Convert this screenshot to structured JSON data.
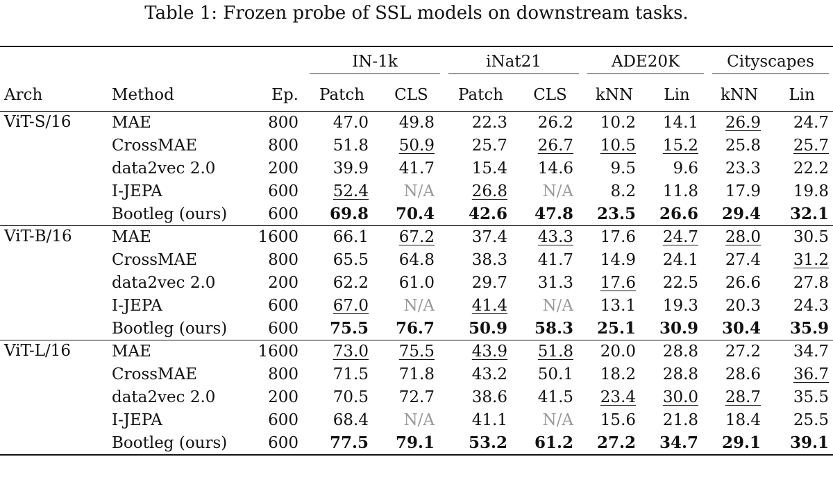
{
  "caption": "Table 1: Frozen probe of SSL models on downstream tasks.",
  "header": {
    "groups": [
      "IN-1k",
      "iNat21",
      "ADE20K",
      "Cityscapes"
    ],
    "columns": [
      "Arch",
      "Method",
      "Ep.",
      "Patch",
      "CLS",
      "Patch",
      "CLS",
      "kNN",
      "Lin",
      "kNN",
      "Lin"
    ]
  },
  "blocks": [
    {
      "arch": "ViT-S/16",
      "rows": [
        {
          "method": "MAE",
          "ep": "800",
          "values": [
            "47.0",
            "49.8",
            "22.3",
            "26.2",
            "10.2",
            "14.1",
            "26.9",
            "24.7"
          ],
          "underline": [
            6
          ],
          "bold": [],
          "na": []
        },
        {
          "method": "CrossMAE",
          "ep": "800",
          "values": [
            "51.8",
            "50.9",
            "25.7",
            "26.7",
            "10.5",
            "15.2",
            "25.8",
            "25.7"
          ],
          "underline": [
            1,
            3,
            4,
            5,
            7
          ],
          "bold": [],
          "na": []
        },
        {
          "method": "data2vec 2.0",
          "ep": "200",
          "values": [
            "39.9",
            "41.7",
            "15.4",
            "14.6",
            "9.5",
            "9.6",
            "23.3",
            "22.2"
          ],
          "underline": [],
          "bold": [],
          "na": []
        },
        {
          "method": "I-JEPA",
          "ep": "600",
          "values": [
            "52.4",
            "N/A",
            "26.8",
            "N/A",
            "8.2",
            "11.8",
            "17.9",
            "19.8"
          ],
          "underline": [
            0,
            2
          ],
          "bold": [],
          "na": [
            1,
            3
          ]
        },
        {
          "method": "Bootleg (ours)",
          "ep": "600",
          "values": [
            "69.8",
            "70.4",
            "42.6",
            "47.8",
            "23.5",
            "26.6",
            "29.4",
            "32.1"
          ],
          "underline": [],
          "bold": [
            0,
            1,
            2,
            3,
            4,
            5,
            6,
            7
          ],
          "na": []
        }
      ]
    },
    {
      "arch": "ViT-B/16",
      "rows": [
        {
          "method": "MAE",
          "ep": "1600",
          "values": [
            "66.1",
            "67.2",
            "37.4",
            "43.3",
            "17.6",
            "24.7",
            "28.0",
            "30.5"
          ],
          "underline": [
            1,
            3,
            5,
            6
          ],
          "bold": [],
          "na": []
        },
        {
          "method": "CrossMAE",
          "ep": "800",
          "values": [
            "65.5",
            "64.8",
            "38.3",
            "41.7",
            "14.9",
            "24.1",
            "27.4",
            "31.2"
          ],
          "underline": [
            7
          ],
          "bold": [],
          "na": []
        },
        {
          "method": "data2vec 2.0",
          "ep": "200",
          "values": [
            "62.2",
            "61.0",
            "29.7",
            "31.3",
            "17.6",
            "22.5",
            "26.6",
            "27.8"
          ],
          "underline": [
            4
          ],
          "bold": [],
          "na": []
        },
        {
          "method": "I-JEPA",
          "ep": "600",
          "values": [
            "67.0",
            "N/A",
            "41.4",
            "N/A",
            "13.1",
            "19.3",
            "20.3",
            "24.3"
          ],
          "underline": [
            0,
            2
          ],
          "bold": [],
          "na": [
            1,
            3
          ]
        },
        {
          "method": "Bootleg (ours)",
          "ep": "600",
          "values": [
            "75.5",
            "76.7",
            "50.9",
            "58.3",
            "25.1",
            "30.9",
            "30.4",
            "35.9"
          ],
          "underline": [],
          "bold": [
            0,
            1,
            2,
            3,
            4,
            5,
            6,
            7
          ],
          "na": []
        }
      ]
    },
    {
      "arch": "ViT-L/16",
      "rows": [
        {
          "method": "MAE",
          "ep": "1600",
          "values": [
            "73.0",
            "75.5",
            "43.9",
            "51.8",
            "20.0",
            "28.8",
            "27.2",
            "34.7"
          ],
          "underline": [
            0,
            1,
            2,
            3
          ],
          "bold": [],
          "na": []
        },
        {
          "method": "CrossMAE",
          "ep": "800",
          "values": [
            "71.5",
            "71.8",
            "43.2",
            "50.1",
            "18.2",
            "28.8",
            "28.6",
            "36.7"
          ],
          "underline": [
            7
          ],
          "bold": [],
          "na": []
        },
        {
          "method": "data2vec 2.0",
          "ep": "200",
          "values": [
            "70.5",
            "72.7",
            "38.6",
            "41.5",
            "23.4",
            "30.0",
            "28.7",
            "35.5"
          ],
          "underline": [
            4,
            5,
            6
          ],
          "bold": [],
          "na": []
        },
        {
          "method": "I-JEPA",
          "ep": "600",
          "values": [
            "68.4",
            "N/A",
            "41.1",
            "N/A",
            "15.6",
            "21.8",
            "18.4",
            "25.5"
          ],
          "underline": [],
          "bold": [],
          "na": [
            1,
            3
          ]
        },
        {
          "method": "Bootleg (ours)",
          "ep": "600",
          "values": [
            "77.5",
            "79.1",
            "53.2",
            "61.2",
            "27.2",
            "34.7",
            "29.1",
            "39.1"
          ],
          "underline": [],
          "bold": [
            0,
            1,
            2,
            3,
            4,
            5,
            6,
            7
          ],
          "na": []
        }
      ]
    }
  ]
}
